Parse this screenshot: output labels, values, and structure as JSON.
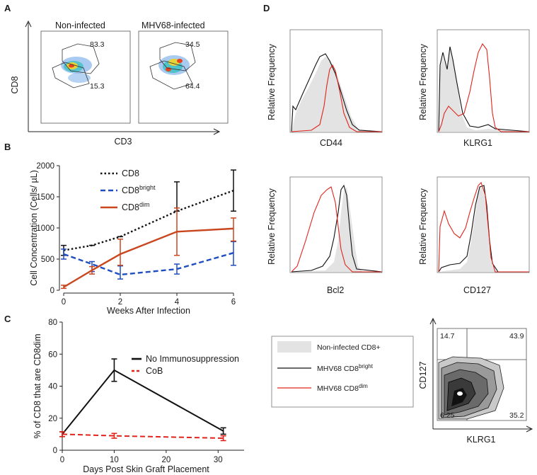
{
  "figure": {
    "panels": {
      "A": {
        "letter": "A",
        "titles": [
          "Non-infected",
          "MHV68-infected"
        ],
        "ylabel": "CD8",
        "xlabel": "CD3",
        "gates": [
          {
            "top": "83.3",
            "bottom": "15.3"
          },
          {
            "top": "34.5",
            "bottom": "64.4"
          }
        ]
      },
      "B": {
        "letter": "B"
      },
      "C": {
        "letter": "C"
      },
      "D": {
        "letter": "D",
        "ylabel": "Relative Frequency",
        "histograms": [
          "CD44",
          "KLRG1",
          "Bcl2",
          "CD127"
        ],
        "legend": {
          "items": [
            {
              "label": "Non-infected CD8+",
              "sup": ""
            },
            {
              "label": "MHV68 CD8",
              "sup": "bright"
            },
            {
              "label": "MHV68 CD8",
              "sup": "dim"
            }
          ]
        },
        "contour": {
          "xlabel": "KLRG1",
          "ylabel": "CD127",
          "quadrants": {
            "tl": "14.7",
            "tr": "43.9",
            "bl": "6.25",
            "br": "35.2"
          }
        }
      }
    },
    "colors": {
      "black": "#111111",
      "blue": "#1f4ec0",
      "orange": "#c9461f",
      "red": "#e0241b",
      "gray_fill": "#e3e3e3"
    }
  },
  "chart_data": [
    {
      "id": "B",
      "type": "line",
      "x": [
        0,
        1,
        2,
        4,
        6
      ],
      "xlabel": "Weeks After Infection",
      "ylabel": "Cell Concentration (Cells/ µL)",
      "xticks": [
        "0",
        "2",
        "4",
        "6"
      ],
      "yticks": [
        "0",
        "500",
        "1000",
        "1500",
        "2000"
      ],
      "xlim": [
        0,
        6
      ],
      "ylim": [
        0,
        2000
      ],
      "series": [
        {
          "name": "CD8",
          "sup": "",
          "style": "dotted",
          "color": "#111111",
          "values": [
            640,
            720,
            860,
            1270,
            1600
          ],
          "err_hi": [
            720,
            720,
            860,
            1740,
            1930
          ],
          "err_lo": [
            560,
            720,
            860,
            1270,
            1270
          ]
        },
        {
          "name": "CD8",
          "sup": "bright",
          "style": "dashed",
          "color": "#1f4ec0",
          "values": [
            580,
            420,
            250,
            340,
            600
          ],
          "err_hi": [
            660,
            460,
            390,
            420,
            780
          ],
          "err_lo": [
            500,
            300,
            180,
            260,
            400
          ]
        },
        {
          "name": "CD8",
          "sup": "dim",
          "style": "solid",
          "color": "#c9461f",
          "values": [
            50,
            320,
            580,
            940,
            990
          ],
          "err_hi": [
            80,
            380,
            820,
            1320,
            1160
          ],
          "err_lo": [
            30,
            260,
            400,
            560,
            790
          ]
        }
      ]
    },
    {
      "id": "C",
      "type": "line",
      "x": [
        0,
        10,
        31
      ],
      "xlabel": "Days Post Skin Graft Placement",
      "ylabel": "% of CD8 that are CD8dim",
      "xticks": [
        "0",
        "10",
        "20",
        "30"
      ],
      "yticks": [
        "0",
        "20",
        "40",
        "60",
        "80"
      ],
      "xlim": [
        0,
        35
      ],
      "ylim": [
        0,
        80
      ],
      "series": [
        {
          "name": "No Immunosuppression",
          "style": "solid",
          "color": "#111111",
          "values": [
            10,
            50,
            12
          ],
          "err": [
            1.5,
            7,
            2
          ]
        },
        {
          "name": "CoB",
          "style": "dashed",
          "color": "#e0241b",
          "values": [
            10,
            9,
            7.5
          ],
          "err": [
            1.5,
            1.5,
            1.5
          ]
        }
      ]
    }
  ]
}
